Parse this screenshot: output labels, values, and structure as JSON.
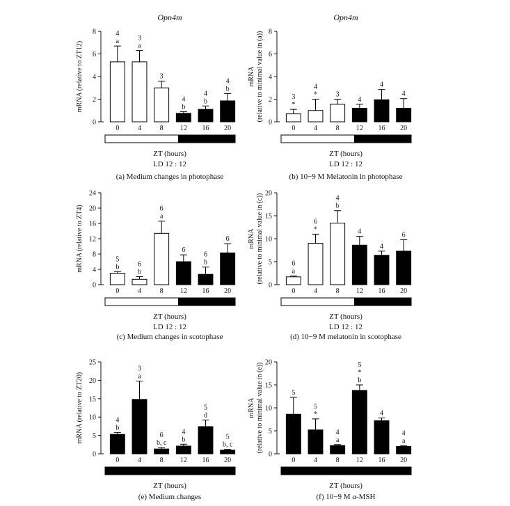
{
  "chart_data": [
    {
      "type": "bar",
      "panel": "a",
      "title": "Opn4m",
      "ylabel": "mRNA (relative to ZT12)",
      "xlabel": "ZT (hours)",
      "condition": "LD 12 : 12",
      "caption": "(a)  Medium changes in photophase",
      "ylim": [
        0,
        8
      ],
      "yticks": [
        "0",
        "2",
        "4",
        "6",
        "8"
      ],
      "categories": [
        "0",
        "4",
        "8",
        "12",
        "16",
        "20"
      ],
      "values": [
        5.3,
        5.3,
        3.0,
        0.75,
        1.1,
        1.85
      ],
      "errors": [
        1.4,
        1.0,
        0.6,
        0.15,
        0.3,
        0.65
      ],
      "dark": [
        false,
        false,
        false,
        true,
        true,
        true
      ],
      "labels": [
        [
          "4",
          "a"
        ],
        [
          "3",
          "a"
        ],
        [
          "3"
        ],
        [
          "4",
          "b"
        ],
        [
          "4",
          "b"
        ],
        [
          "4",
          "b"
        ]
      ],
      "light_bar": "LD"
    },
    {
      "type": "bar",
      "panel": "b",
      "title": "Opn4m",
      "ylabel": "mRNA",
      "ylabel2": "(relative to minimal value in (a))",
      "xlabel": "ZT (hours)",
      "condition": "LD 12 : 12",
      "caption": "(b)  10−9 M Melatonin in photophase",
      "ylim": [
        0,
        8
      ],
      "yticks": [
        "0",
        "2",
        "4",
        "6",
        "8"
      ],
      "categories": [
        "0",
        "4",
        "8",
        "12",
        "16",
        "20"
      ],
      "values": [
        0.7,
        1.0,
        1.55,
        1.2,
        1.95,
        1.2
      ],
      "errors": [
        0.4,
        1.0,
        0.45,
        0.35,
        0.9,
        0.85
      ],
      "dark": [
        false,
        false,
        false,
        true,
        true,
        true
      ],
      "labels": [
        [
          "3",
          "*"
        ],
        [
          "4",
          "*"
        ],
        [
          "3"
        ],
        [
          "4"
        ],
        [
          "4"
        ],
        [
          "4"
        ]
      ],
      "light_bar": "LD"
    },
    {
      "type": "bar",
      "panel": "c",
      "ylabel": "mRNA (relative to ZT4)",
      "xlabel": "ZT (hours)",
      "condition": "LD 12 : 12",
      "caption": "(c)  Medium changes in scotophase",
      "ylim": [
        0,
        24
      ],
      "yticks": [
        "0",
        "4",
        "8",
        "12",
        "16",
        "20",
        "24"
      ],
      "categories": [
        "0",
        "4",
        "8",
        "12",
        "16",
        "20"
      ],
      "values": [
        3.0,
        1.4,
        13.4,
        6.0,
        2.7,
        8.3
      ],
      "errors": [
        0.4,
        0.7,
        3.2,
        1.8,
        1.9,
        2.4
      ],
      "dark": [
        false,
        false,
        false,
        true,
        true,
        true
      ],
      "labels": [
        [
          "5",
          "b"
        ],
        [
          "6",
          "b"
        ],
        [
          "6",
          "a"
        ],
        [
          "6"
        ],
        [
          "6",
          "b"
        ],
        [
          "6"
        ]
      ],
      "light_bar": "LD"
    },
    {
      "type": "bar",
      "panel": "d",
      "ylabel": "mRNA",
      "ylabel2": "(relative to minimal value in (c))",
      "xlabel": "ZT (hours)",
      "condition": "LD 12 : 12",
      "caption": "(d)  10−9 M melatonin in scotophase",
      "ylim": [
        0,
        20
      ],
      "yticks": [
        "0",
        "5",
        "10",
        "15",
        "20"
      ],
      "categories": [
        "0",
        "4",
        "8",
        "12",
        "16",
        "20"
      ],
      "values": [
        1.7,
        9.0,
        13.4,
        8.6,
        6.4,
        7.3
      ],
      "errors": [
        0.2,
        2.0,
        2.7,
        1.9,
        0.9,
        2.5
      ],
      "dark": [
        false,
        false,
        false,
        true,
        true,
        true
      ],
      "labels": [
        [
          "6",
          "a"
        ],
        [
          "6",
          "*"
        ],
        [
          "4",
          "b"
        ],
        [
          "4"
        ],
        [
          "4"
        ],
        [
          "6"
        ]
      ],
      "light_bar": "LD"
    },
    {
      "type": "bar",
      "panel": "e",
      "ylabel": "mRNA (relative to ZT20)",
      "xlabel": "ZT (hours)",
      "caption": "(e)  Medium changes",
      "ylim": [
        0,
        25
      ],
      "yticks": [
        "0",
        "5",
        "10",
        "15",
        "20",
        "25"
      ],
      "categories": [
        "0",
        "4",
        "8",
        "12",
        "16",
        "20"
      ],
      "values": [
        5.3,
        14.8,
        1.3,
        2.1,
        7.4,
        1.0
      ],
      "errors": [
        0.5,
        5.0,
        0.4,
        0.5,
        1.8,
        0.2
      ],
      "dark": [
        true,
        true,
        true,
        true,
        true,
        true
      ],
      "labels": [
        [
          "4",
          "b"
        ],
        [
          "3",
          "a"
        ],
        [
          "6",
          "b, c"
        ],
        [
          "4",
          "b"
        ],
        [
          "5",
          "d"
        ],
        [
          "5",
          "b, c"
        ]
      ],
      "light_bar": "DD"
    },
    {
      "type": "bar",
      "panel": "f",
      "ylabel": "mRNA",
      "ylabel2": "(relative to minimal value in (e))",
      "xlabel": "ZT (hours)",
      "caption": "(f)  10−9 M α-MSH",
      "ylim": [
        0,
        20
      ],
      "yticks": [
        "0",
        "5",
        "10",
        "15",
        "20"
      ],
      "categories": [
        "0",
        "4",
        "8",
        "12",
        "16",
        "20"
      ],
      "values": [
        8.6,
        5.2,
        1.8,
        13.8,
        7.2,
        1.6
      ],
      "errors": [
        3.7,
        2.4,
        0.2,
        1.2,
        0.6,
        0.15
      ],
      "dark": [
        true,
        true,
        true,
        true,
        true,
        true
      ],
      "labels": [
        [
          "5"
        ],
        [
          "5",
          "*"
        ],
        [
          "4",
          "a"
        ],
        [
          "5",
          "*",
          "b"
        ],
        [
          "4"
        ],
        [
          "4",
          "a"
        ]
      ],
      "light_bar": "DD"
    }
  ]
}
